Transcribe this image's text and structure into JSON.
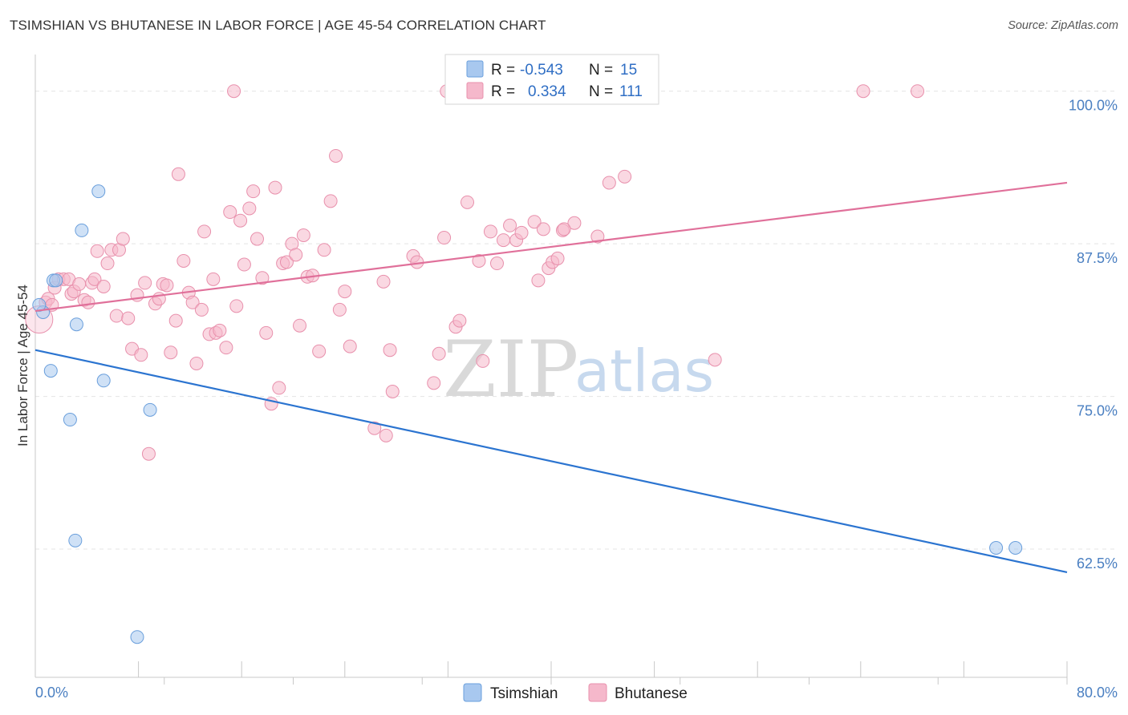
{
  "title": "TSIMSHIAN VS BHUTANESE IN LABOR FORCE | AGE 45-54 CORRELATION CHART",
  "source": "Source: ZipAtlas.com",
  "watermark": {
    "zip": "ZIP",
    "atlas": "atlas"
  },
  "colors": {
    "tsimshian_fill": "#a8c8ef",
    "tsimshian_stroke": "#6a9fdc",
    "tsimshian_line": "#2b74d0",
    "bhutanese_fill": "#f5b8cb",
    "bhutanese_stroke": "#e890ac",
    "bhutanese_line": "#e0709a",
    "grid": "#e4e4e4",
    "axis": "#c8c8c8"
  },
  "legend": {
    "rows": [
      {
        "name": "Tsimshian",
        "r_label": "R =",
        "r_value": "-0.543",
        "n_label": "N =",
        "n_value": "15"
      },
      {
        "name": "Bhutanese",
        "r_label": "R =",
        "r_value": "0.334",
        "n_label": "N =",
        "n_value": "111"
      }
    ]
  },
  "chart_data": {
    "type": "scatter",
    "title": "TSIMSHIAN VS BHUTANESE IN LABOR FORCE | AGE 45-54 CORRELATION CHART",
    "xlabel": "",
    "ylabel": "In Labor Force | Age 45-54",
    "xlim": [
      0,
      80
    ],
    "ylim": [
      52,
      103
    ],
    "x_tick_labels": [
      "0.0%",
      "80.0%"
    ],
    "y_ticks": [
      62.5,
      75.0,
      87.5,
      100.0
    ],
    "y_tick_labels": [
      "62.5%",
      "75.0%",
      "87.5%",
      "100.0%"
    ],
    "grid": true,
    "legend_position": "top-center",
    "series": [
      {
        "name": "Tsimshian",
        "points": [
          [
            0.6,
            81.9
          ],
          [
            1.2,
            77.1
          ],
          [
            1.4,
            84.5
          ],
          [
            1.6,
            84.5
          ],
          [
            2.7,
            73.1
          ],
          [
            3.1,
            63.2
          ],
          [
            3.2,
            80.9
          ],
          [
            3.6,
            88.6
          ],
          [
            4.9,
            91.8
          ],
          [
            5.3,
            76.3
          ],
          [
            7.9,
            55.3
          ],
          [
            8.9,
            73.9
          ],
          [
            74.5,
            62.6
          ],
          [
            76.0,
            62.6
          ],
          [
            0.3,
            82.5
          ]
        ],
        "trend": {
          "x": [
            0,
            80
          ],
          "y": [
            78.8,
            60.6
          ]
        }
      },
      {
        "name": "Bhutanese",
        "points": [
          [
            0.3,
            81.3
          ],
          [
            0.8,
            82.7
          ],
          [
            1.0,
            83.0
          ],
          [
            1.3,
            82.5
          ],
          [
            1.5,
            83.9
          ],
          [
            1.8,
            84.6
          ],
          [
            2.2,
            84.6
          ],
          [
            2.6,
            84.6
          ],
          [
            2.8,
            83.4
          ],
          [
            3.0,
            83.6
          ],
          [
            3.4,
            84.2
          ],
          [
            3.8,
            82.9
          ],
          [
            4.1,
            82.7
          ],
          [
            4.4,
            84.3
          ],
          [
            4.6,
            84.6
          ],
          [
            4.8,
            86.9
          ],
          [
            5.3,
            84.0
          ],
          [
            5.6,
            85.9
          ],
          [
            5.9,
            87.0
          ],
          [
            6.3,
            81.6
          ],
          [
            6.5,
            87.0
          ],
          [
            6.8,
            87.9
          ],
          [
            7.2,
            81.4
          ],
          [
            7.5,
            78.9
          ],
          [
            7.9,
            83.3
          ],
          [
            8.2,
            78.4
          ],
          [
            8.5,
            84.3
          ],
          [
            8.8,
            70.3
          ],
          [
            9.3,
            82.6
          ],
          [
            9.6,
            83.0
          ],
          [
            9.9,
            84.2
          ],
          [
            10.2,
            84.1
          ],
          [
            10.5,
            78.6
          ],
          [
            10.9,
            81.2
          ],
          [
            11.1,
            93.2
          ],
          [
            11.5,
            86.1
          ],
          [
            11.9,
            83.5
          ],
          [
            12.2,
            82.7
          ],
          [
            12.5,
            77.7
          ],
          [
            12.9,
            82.1
          ],
          [
            13.1,
            88.5
          ],
          [
            13.5,
            80.1
          ],
          [
            13.8,
            84.6
          ],
          [
            14.0,
            80.2
          ],
          [
            14.3,
            80.4
          ],
          [
            14.8,
            79.0
          ],
          [
            15.1,
            90.1
          ],
          [
            15.4,
            100.0
          ],
          [
            15.6,
            82.4
          ],
          [
            15.9,
            89.4
          ],
          [
            16.2,
            85.8
          ],
          [
            16.6,
            90.4
          ],
          [
            16.9,
            91.8
          ],
          [
            17.2,
            87.9
          ],
          [
            17.6,
            84.7
          ],
          [
            17.9,
            80.2
          ],
          [
            18.3,
            74.4
          ],
          [
            18.6,
            92.1
          ],
          [
            18.9,
            75.7
          ],
          [
            19.2,
            85.9
          ],
          [
            19.5,
            86.0
          ],
          [
            19.9,
            87.5
          ],
          [
            20.2,
            86.6
          ],
          [
            20.5,
            80.8
          ],
          [
            20.8,
            88.2
          ],
          [
            21.1,
            84.8
          ],
          [
            21.5,
            84.9
          ],
          [
            22.0,
            78.7
          ],
          [
            22.4,
            87.0
          ],
          [
            22.9,
            91.0
          ],
          [
            23.3,
            94.7
          ],
          [
            23.6,
            82.1
          ],
          [
            24.0,
            83.6
          ],
          [
            24.4,
            79.1
          ],
          [
            26.3,
            72.4
          ],
          [
            27.0,
            84.4
          ],
          [
            27.2,
            71.8
          ],
          [
            27.5,
            78.8
          ],
          [
            27.7,
            75.4
          ],
          [
            29.3,
            86.5
          ],
          [
            29.6,
            86.0
          ],
          [
            30.9,
            76.1
          ],
          [
            31.3,
            78.5
          ],
          [
            31.7,
            88.0
          ],
          [
            31.9,
            100.0
          ],
          [
            32.6,
            80.7
          ],
          [
            32.9,
            81.2
          ],
          [
            33.5,
            90.9
          ],
          [
            34.4,
            86.1
          ],
          [
            34.7,
            77.9
          ],
          [
            35.3,
            88.5
          ],
          [
            35.8,
            85.9
          ],
          [
            36.3,
            87.8
          ],
          [
            36.8,
            89.0
          ],
          [
            37.3,
            87.8
          ],
          [
            37.7,
            88.4
          ],
          [
            38.7,
            89.3
          ],
          [
            39.0,
            84.5
          ],
          [
            39.4,
            88.7
          ],
          [
            39.8,
            85.5
          ],
          [
            40.1,
            86.0
          ],
          [
            40.5,
            86.3
          ],
          [
            40.9,
            88.6
          ],
          [
            41.8,
            89.2
          ],
          [
            43.6,
            88.1
          ],
          [
            44.5,
            92.5
          ],
          [
            45.7,
            93.0
          ],
          [
            52.7,
            78.0
          ],
          [
            64.2,
            100.0
          ],
          [
            68.4,
            100.0
          ],
          [
            41.0,
            88.7
          ]
        ],
        "trend": {
          "x": [
            0,
            80
          ],
          "y": [
            82.0,
            92.5
          ]
        }
      }
    ]
  }
}
